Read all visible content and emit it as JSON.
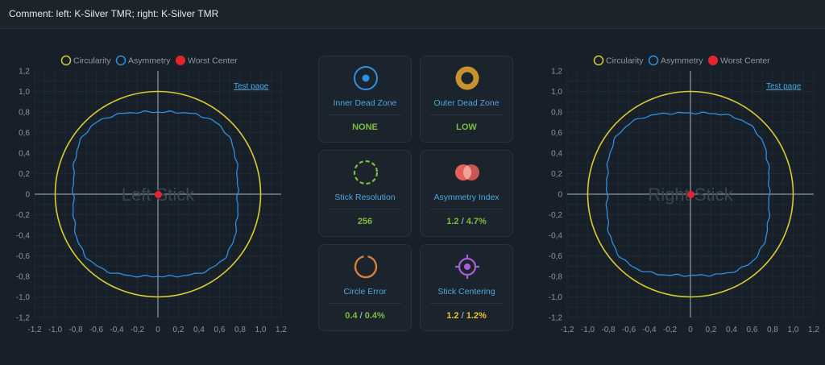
{
  "header": {
    "comment": "Comment: left: K-Silver TMR; right: K-Silver TMR"
  },
  "legend": {
    "circularity": "Circularity",
    "asymmetry": "Asymmetry",
    "worst_center": "Worst Center"
  },
  "left_plot": {
    "watermark": "Left Stick",
    "test_page": "Test page"
  },
  "right_plot": {
    "watermark": "Right Stick",
    "test_page": "Test page"
  },
  "axis_ticks": [
    "-1,2",
    "-1,0",
    "-0,8",
    "-0,6",
    "-0,4",
    "-0,2",
    "0",
    "0,2",
    "0,4",
    "0,6",
    "0,8",
    "1,0",
    "1,2"
  ],
  "cards": {
    "inner_dead_zone": {
      "label": "Inner Dead Zone",
      "value": "NONE"
    },
    "outer_dead_zone": {
      "label": "Outer Dead Zone",
      "value": "LOW"
    },
    "stick_resolution": {
      "label": "Stick Resolution",
      "value": "256"
    },
    "asymmetry_index": {
      "label": "Asymmetry Index",
      "value_left": "1.2",
      "slash": "/",
      "value_right": "4.7%"
    },
    "circle_error": {
      "label": "Circle Error",
      "value_left": "0.4",
      "slash": "/",
      "value_right": "0.4%"
    },
    "stick_centering": {
      "label": "Stick Centering",
      "value_left": "1.2",
      "slash": "/",
      "value_right": "1.2%"
    }
  },
  "colors": {
    "circularity": "#d9cc2e",
    "asymmetry": "#2f8fe0",
    "worst_center": "#e3262b",
    "value_green": "#7dbd3c",
    "value_yellow": "#e8c432",
    "label_blue": "#4ea6dc"
  }
}
